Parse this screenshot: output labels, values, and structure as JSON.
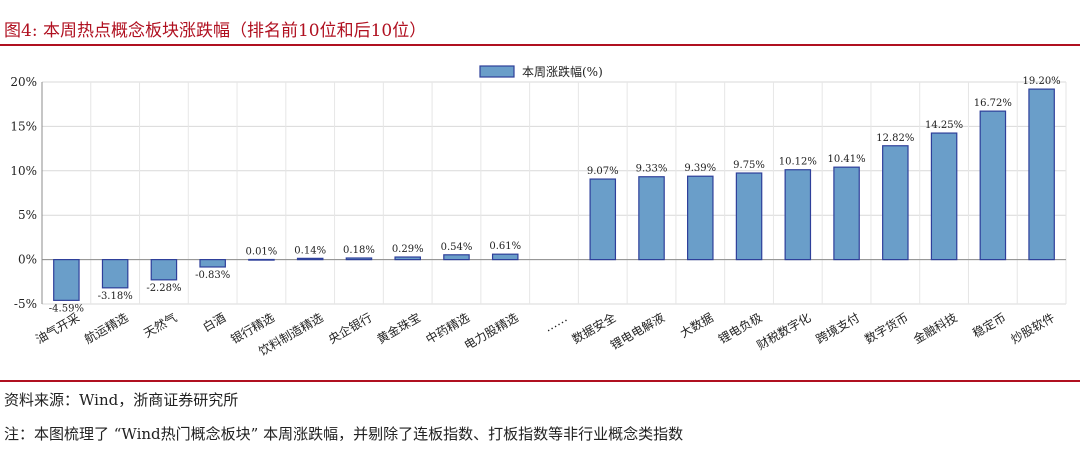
{
  "figure": {
    "title": "图4:  本周热点概念板块涨跌幅（排名前10位和后10位）",
    "source": "资料来源：Wind，浙商证券研究所",
    "note": "注：本图梳理了 “Wind热门概念板块” 本周涨跌幅，并剔除了连板指数、打板指数等非行业概念类指数"
  },
  "chart_data": {
    "type": "bar",
    "categories": [
      "油气开采",
      "航运精选",
      "天然气",
      "白酒",
      "银行精选",
      "饮料制造精选",
      "央企银行",
      "黄金珠宝",
      "中药精选",
      "电力股精选",
      "……",
      "数据安全",
      "锂电电解液",
      "大数据",
      "锂电负极",
      "财税数字化",
      "跨境支付",
      "数字货币",
      "金融科技",
      "稳定币",
      "炒股软件"
    ],
    "values": [
      -4.59,
      -3.18,
      -2.28,
      -0.83,
      0.01,
      0.14,
      0.18,
      0.29,
      0.54,
      0.61,
      null,
      9.07,
      9.33,
      9.39,
      9.75,
      10.12,
      10.41,
      12.82,
      14.25,
      16.72,
      19.2
    ],
    "data_labels": [
      "-4.59%",
      "-3.18%",
      "-2.28%",
      "-0.83%",
      "0.01%",
      "0.14%",
      "0.18%",
      "0.29%",
      "0.54%",
      "0.61%",
      "",
      "9.07%",
      "9.33%",
      "9.39%",
      "9.75%",
      "10.12%",
      "10.41%",
      "12.82%",
      "14.25%",
      "16.72%",
      "19.20%"
    ],
    "series": [
      {
        "name": "本周涨跌幅(%)"
      }
    ],
    "ylim": [
      -5,
      20
    ],
    "yticks": [
      -5,
      0,
      5,
      10,
      15,
      20
    ],
    "ytick_labels": [
      "-5%",
      "0%",
      "5%",
      "10%",
      "15%",
      "20%"
    ],
    "grid": true,
    "legend": "top-center",
    "bar_color": "#6a9ec9",
    "bar_edge_color": "#2e3f9a"
  }
}
